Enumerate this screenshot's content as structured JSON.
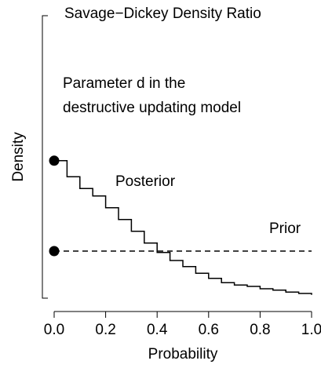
{
  "chart_data": {
    "type": "line",
    "title": "Savage−Dickey Density Ratio",
    "subtitle": [
      "Parameter d in the",
      "destructive updating model"
    ],
    "x_label": "Probability",
    "y_label": "Density",
    "xlim": [
      0,
      1
    ],
    "ylim": [
      0,
      6
    ],
    "xticks": [
      {
        "value": 0,
        "label": "0.0"
      },
      {
        "value": 0.2,
        "label": "0.2"
      },
      {
        "value": 0.4,
        "label": "0.4"
      },
      {
        "value": 0.6,
        "label": "0.6"
      },
      {
        "value": 0.8,
        "label": "0.8"
      },
      {
        "value": 1,
        "label": "1.0"
      }
    ],
    "series": [
      {
        "name": "Posterior",
        "color": "#000000",
        "step": true,
        "x": [
          0,
          0.05,
          0.1,
          0.15,
          0.2,
          0.25,
          0.3,
          0.35,
          0.4,
          0.45,
          0.5,
          0.55,
          0.6,
          0.65,
          0.7,
          0.75,
          0.8,
          0.85,
          0.9,
          0.95,
          1
        ],
        "values": [
          2.92,
          2.58,
          2.33,
          2.17,
          1.92,
          1.67,
          1.42,
          1.17,
          0.97,
          0.8,
          0.67,
          0.53,
          0.42,
          0.33,
          0.28,
          0.25,
          0.2,
          0.17,
          0.13,
          0.1,
          0.07
        ]
      },
      {
        "name": "Prior",
        "color": "#000000",
        "dashed": true,
        "x": [
          0,
          1
        ],
        "values": [
          1,
          1
        ]
      }
    ]
  }
}
